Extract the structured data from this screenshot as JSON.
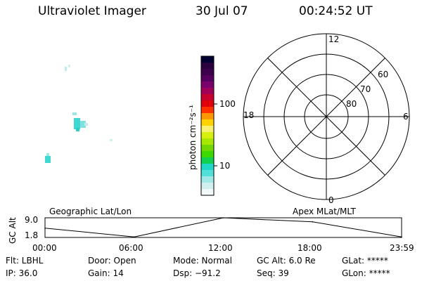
{
  "header": {
    "title": "Ultraviolet Imager",
    "date": "30 Jul 07",
    "time": "00:24:52 UT"
  },
  "colorbar": {
    "label": "photon cm⁻²s⁻¹",
    "ticks": [
      "100",
      "10"
    ],
    "colors": [
      "#000033",
      "#2a003f",
      "#3c004d",
      "#55005f",
      "#7a006e",
      "#a0005a",
      "#c8002e",
      "#e0000a",
      "#ff3000",
      "#ff9800",
      "#ffd200",
      "#f8f070",
      "#d8f010",
      "#a8e800",
      "#70d800",
      "#3cd800",
      "#10d050",
      "#20d8c8",
      "#50e0d8",
      "#a0e8e8",
      "#d0f0f0",
      "#f0f8f8"
    ]
  },
  "polar": {
    "mlt_labels": {
      "top": "12",
      "right": "6",
      "bottom": "0",
      "left": "18"
    },
    "lat_labels": [
      "60",
      "70",
      "80"
    ]
  },
  "timeline": {
    "title_left": "Geographic Lat/Lon",
    "title_right": "Apex MLat/MLT",
    "ylabel": "GC Alt",
    "yticks": [
      "9.0",
      "1.8"
    ],
    "xticks": [
      "00:00",
      "06:00",
      "12:00",
      "18:00",
      "23:59"
    ]
  },
  "status": {
    "flt": "Flt: LBHL",
    "door": "Door: Open",
    "mode": "Mode: Normal",
    "gcalt": "GC Alt: 6.0 Re",
    "glat": "GLat: *****",
    "ip": "IP: 36.0",
    "gain": "Gain: 14",
    "dsp": "Dsp:  −91.2",
    "seq": "Seq: 39",
    "glon": "GLon: *****"
  },
  "chart_data": {
    "type": "line",
    "x": [
      "00:00",
      "06:00",
      "12:00",
      "18:00",
      "23:59"
    ],
    "ylabel": "GC Alt",
    "ylim": [
      1.8,
      9.0
    ],
    "series": [
      {
        "values": [
          5.2,
          2.0,
          9.0,
          7.5,
          2.0
        ]
      }
    ]
  }
}
